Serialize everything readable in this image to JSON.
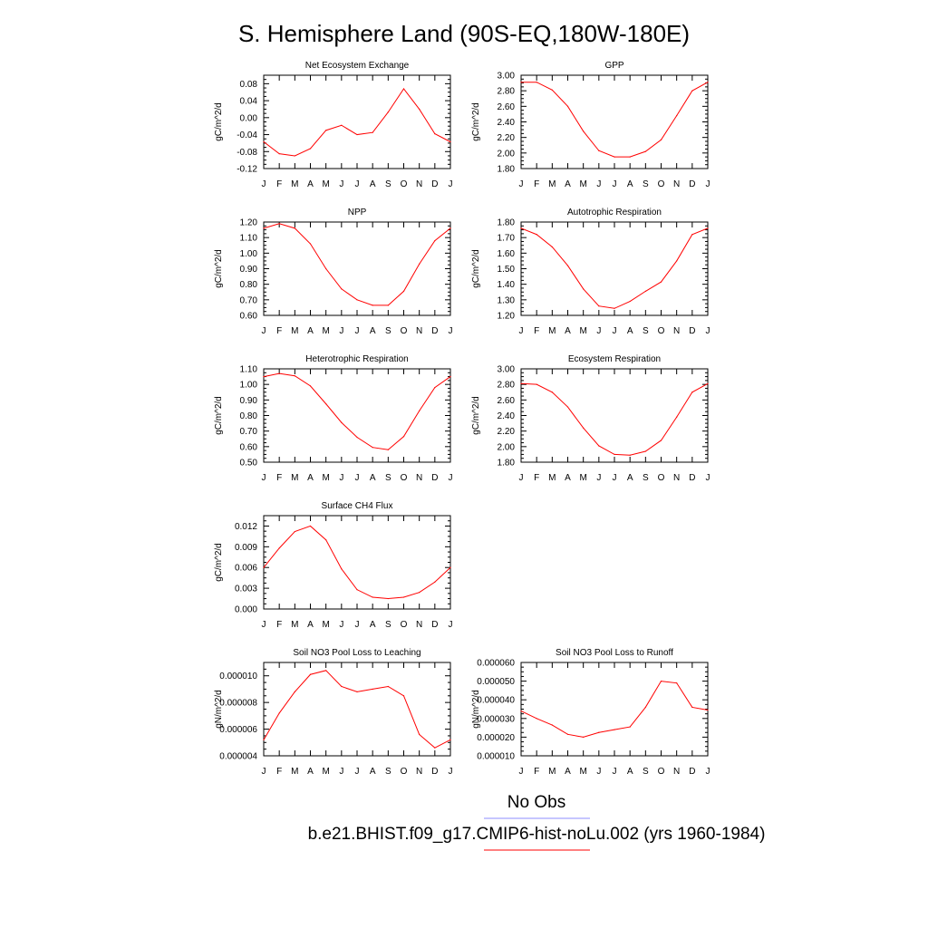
{
  "figure_title": "S. Hemisphere Land (90S-EQ,180W-180E)",
  "months": [
    "J",
    "F",
    "M",
    "A",
    "M",
    "J",
    "J",
    "A",
    "S",
    "O",
    "N",
    "D",
    "J"
  ],
  "legend": {
    "obs_label": "No Obs",
    "obs_color": "#8c8cff",
    "model_label": "b.e21.BHIST.f09_g17.CMIP6-hist-noLu.002 (yrs 1960-1984)",
    "model_color": "#ff0000"
  },
  "line_color": "#ff0000",
  "chart_data": [
    {
      "type": "line",
      "title": "Net Ecosystem Exchange",
      "ylabel": "gC/m^2/d",
      "ylim": [
        -0.12,
        0.1
      ],
      "yticks": [
        -0.12,
        -0.08,
        -0.04,
        0.0,
        0.04,
        0.08
      ],
      "yticklabels": [
        "-0.12",
        "-0.08",
        "-0.04",
        "0.00",
        "0.04",
        "0.08"
      ],
      "categories": [
        "J",
        "F",
        "M",
        "A",
        "M",
        "J",
        "J",
        "A",
        "S",
        "O",
        "N",
        "D",
        "J"
      ],
      "values": [
        -0.057,
        -0.085,
        -0.09,
        -0.073,
        -0.03,
        -0.018,
        -0.04,
        -0.035,
        0.013,
        0.068,
        0.02,
        -0.038,
        -0.057
      ]
    },
    {
      "type": "line",
      "title": "GPP",
      "ylabel": "gC/m^2/d",
      "ylim": [
        1.8,
        3.0
      ],
      "yticks": [
        1.8,
        2.0,
        2.2,
        2.4,
        2.6,
        2.8,
        3.0
      ],
      "yticklabels": [
        "1.80",
        "2.00",
        "2.20",
        "2.40",
        "2.60",
        "2.80",
        "3.00"
      ],
      "categories": [
        "J",
        "F",
        "M",
        "A",
        "M",
        "J",
        "J",
        "A",
        "S",
        "O",
        "N",
        "D",
        "J"
      ],
      "values": [
        2.91,
        2.91,
        2.81,
        2.6,
        2.28,
        2.03,
        1.95,
        1.95,
        2.02,
        2.17,
        2.48,
        2.8,
        2.91
      ]
    },
    {
      "type": "line",
      "title": "NPP",
      "ylabel": "gC/m^2/d",
      "ylim": [
        0.6,
        1.2
      ],
      "yticks": [
        0.6,
        0.7,
        0.8,
        0.9,
        1.0,
        1.1,
        1.2
      ],
      "yticklabels": [
        "0.60",
        "0.70",
        "0.80",
        "0.90",
        "1.00",
        "1.10",
        "1.20"
      ],
      "categories": [
        "J",
        "F",
        "M",
        "A",
        "M",
        "J",
        "J",
        "A",
        "S",
        "O",
        "N",
        "D",
        "J"
      ],
      "values": [
        1.16,
        1.19,
        1.16,
        1.06,
        0.9,
        0.77,
        0.7,
        0.665,
        0.665,
        0.755,
        0.93,
        1.08,
        1.16
      ]
    },
    {
      "type": "line",
      "title": "Autotrophic Respiration",
      "ylabel": "gC/m^2/d",
      "ylim": [
        1.2,
        1.8
      ],
      "yticks": [
        1.2,
        1.3,
        1.4,
        1.5,
        1.6,
        1.7,
        1.8
      ],
      "yticklabels": [
        "1.20",
        "1.30",
        "1.40",
        "1.50",
        "1.60",
        "1.70",
        "1.80"
      ],
      "categories": [
        "J",
        "F",
        "M",
        "A",
        "M",
        "J",
        "J",
        "A",
        "S",
        "O",
        "N",
        "D",
        "J"
      ],
      "values": [
        1.76,
        1.72,
        1.64,
        1.52,
        1.37,
        1.26,
        1.245,
        1.29,
        1.355,
        1.415,
        1.55,
        1.72,
        1.76
      ]
    },
    {
      "type": "line",
      "title": "Heterotrophic Respiration",
      "ylabel": "gC/m^2/d",
      "ylim": [
        0.5,
        1.1
      ],
      "yticks": [
        0.5,
        0.6,
        0.7,
        0.8,
        0.9,
        1.0,
        1.1
      ],
      "yticklabels": [
        "0.50",
        "0.60",
        "0.70",
        "0.80",
        "0.90",
        "1.00",
        "1.10"
      ],
      "categories": [
        "J",
        "F",
        "M",
        "A",
        "M",
        "J",
        "J",
        "A",
        "S",
        "O",
        "N",
        "D",
        "J"
      ],
      "values": [
        1.05,
        1.07,
        1.055,
        0.99,
        0.875,
        0.755,
        0.66,
        0.595,
        0.58,
        0.665,
        0.83,
        0.98,
        1.05
      ]
    },
    {
      "type": "line",
      "title": "Ecosystem Respiration",
      "ylabel": "gC/m^2/d",
      "ylim": [
        1.8,
        3.0
      ],
      "yticks": [
        1.8,
        2.0,
        2.2,
        2.4,
        2.6,
        2.8,
        3.0
      ],
      "yticklabels": [
        "1.80",
        "2.00",
        "2.20",
        "2.40",
        "2.60",
        "2.80",
        "3.00"
      ],
      "categories": [
        "J",
        "F",
        "M",
        "A",
        "M",
        "J",
        "J",
        "A",
        "S",
        "O",
        "N",
        "D",
        "J"
      ],
      "values": [
        2.81,
        2.8,
        2.7,
        2.51,
        2.24,
        2.01,
        1.9,
        1.89,
        1.94,
        2.08,
        2.38,
        2.7,
        2.81
      ]
    },
    {
      "type": "line",
      "title": "Surface CH4 Flux",
      "ylabel": "gC/m^2/d",
      "ylim": [
        0.0,
        0.0135
      ],
      "yticks": [
        0.0,
        0.003,
        0.006,
        0.009,
        0.012
      ],
      "yticklabels": [
        "0.000",
        "0.003",
        "0.006",
        "0.009",
        "0.012"
      ],
      "categories": [
        "J",
        "F",
        "M",
        "A",
        "M",
        "J",
        "J",
        "A",
        "S",
        "O",
        "N",
        "D",
        "J"
      ],
      "values": [
        0.006,
        0.0088,
        0.0112,
        0.012,
        0.01,
        0.0058,
        0.0028,
        0.0017,
        0.0015,
        0.0017,
        0.0024,
        0.0039,
        0.006
      ]
    },
    {
      "type": "line",
      "title": "Soil NO3 Pool Loss to Leaching",
      "ylabel": "gN/m^2/d",
      "ylim": [
        4e-06,
        1.1e-05
      ],
      "yticks": [
        4e-06,
        6e-06,
        8e-06,
        1e-05
      ],
      "yticklabels": [
        "0.000004",
        "0.000006",
        "0.000008",
        "0.000010"
      ],
      "categories": [
        "J",
        "F",
        "M",
        "A",
        "M",
        "J",
        "J",
        "A",
        "S",
        "O",
        "N",
        "D",
        "J"
      ],
      "values": [
        5.2e-06,
        7.2e-06,
        8.8e-06,
        1.01e-05,
        1.04e-05,
        9.2e-06,
        8.8e-06,
        9e-06,
        9.2e-06,
        8.5e-06,
        5.6e-06,
        4.6e-06,
        5.2e-06
      ]
    },
    {
      "type": "line",
      "title": "Soil NO3 Pool Loss to Runoff",
      "ylabel": "gN/m^2/d",
      "ylim": [
        1e-05,
        6e-05
      ],
      "yticks": [
        1e-05,
        2e-05,
        3e-05,
        4e-05,
        5e-05,
        6e-05
      ],
      "yticklabels": [
        "0.000010",
        "0.000020",
        "0.000030",
        "0.000040",
        "0.000050",
        "0.000060"
      ],
      "categories": [
        "J",
        "F",
        "M",
        "A",
        "M",
        "J",
        "J",
        "A",
        "S",
        "O",
        "N",
        "D",
        "J"
      ],
      "values": [
        3.4e-05,
        3e-05,
        2.65e-05,
        2.15e-05,
        2e-05,
        2.25e-05,
        2.4e-05,
        2.55e-05,
        3.6e-05,
        5e-05,
        4.9e-05,
        3.6e-05,
        3.45e-05
      ]
    }
  ]
}
